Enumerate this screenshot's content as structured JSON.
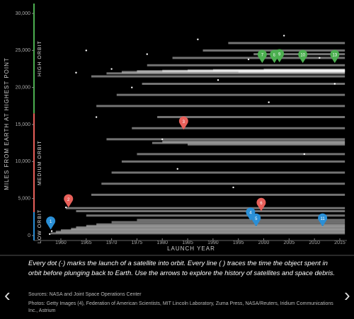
{
  "chart_data": {
    "type": "timeline-scatter",
    "xlabel": "LAUNCH YEAR",
    "ylabel": "MILES FROM EARTH AT HIGHEST POINT",
    "xlim": [
      1954.7,
      2016.4
    ],
    "ylim": [
      -670,
      31340
    ],
    "xticks": [
      1960,
      1965,
      1970,
      1975,
      1980,
      1985,
      1990,
      1995,
      2000,
      2005,
      2010,
      2015
    ],
    "yticks": [
      0,
      {
        "value": 5000,
        "label": "5,000"
      },
      {
        "value": 10000,
        "label": "10,000"
      },
      {
        "value": 15000,
        "label": "15,000"
      },
      {
        "value": 20000,
        "label": "20,000"
      },
      {
        "value": 25000,
        "label": "25,000"
      },
      {
        "value": 30000,
        "label": "30,000"
      }
    ],
    "zone_bounds": [
      3150,
      16500
    ],
    "zones": [
      {
        "label": "LOW ORBIT",
        "color": "#2a8fd6"
      },
      {
        "label": "MEDIUM ORBIT",
        "color": "#e8605a"
      },
      {
        "label": "HIGH ORBIT",
        "color": "#4caf50"
      }
    ],
    "segment_color": "#ffffff",
    "segments": {
      "start": [
        1958,
        1959,
        1960,
        1962,
        1963,
        1965,
        1967,
        1970,
        1975,
        1961,
        1963,
        1965,
        1966,
        1968,
        1970,
        1972,
        1975,
        1978,
        1980,
        1985,
        1969,
        1974,
        1979,
        1967,
        1971,
        1976,
        1966,
        1969,
        1972,
        1975,
        1980,
        1985,
        1990,
        1995,
        2000,
        1977,
        1982,
        1988,
        1993,
        1998
      ],
      "end": [
        2016,
        2016,
        2016,
        2016,
        2016,
        2016,
        2016,
        2016,
        2016,
        2016,
        2016,
        2016,
        2016,
        2016,
        2016,
        2016,
        2016,
        2016,
        2016,
        2016,
        2016,
        2016,
        2016,
        2016,
        2016,
        2016,
        2016,
        2016,
        2016,
        2016,
        2016,
        2016,
        2016,
        2016,
        2016,
        2016,
        2016,
        2016,
        2016,
        2016
      ],
      "altitude": [
        300,
        500,
        700,
        900,
        1100,
        1300,
        1500,
        1800,
        2100,
        3700,
        3300,
        2700,
        5500,
        7000,
        8500,
        10000,
        11000,
        12500,
        12700,
        12300,
        13000,
        14500,
        16000,
        17500,
        19000,
        20500,
        21500,
        21900,
        22100,
        22200,
        22250,
        22300,
        22350,
        22150,
        22400,
        23000,
        24000,
        25000,
        26000,
        24500
      ]
    },
    "dots": {
      "x": [
        1957.8,
        1958.2,
        1961,
        1963,
        1965,
        1967,
        1970,
        1974,
        1977,
        1980,
        1983,
        1987,
        1991,
        1994,
        1997,
        2001,
        2004,
        2008,
        2011,
        2014
      ],
      "y": [
        200,
        600,
        3800,
        22000,
        25000,
        16000,
        22500,
        20000,
        24500,
        13000,
        9000,
        26500,
        21000,
        6500,
        23800,
        18000,
        27000,
        11000,
        24000,
        20500
      ]
    },
    "markers": [
      {
        "label": "1",
        "x": 1958,
        "y": 800,
        "color": "#2a8fd6"
      },
      {
        "label": "2",
        "x": 1961.5,
        "y": 3800,
        "color": "#e8605a"
      },
      {
        "label": "3",
        "x": 1984.2,
        "y": 14300,
        "color": "#e8605a"
      },
      {
        "label": "4",
        "x": 1997.4,
        "y": 2000,
        "color": "#2a8fd6"
      },
      {
        "label": "5",
        "x": 1998.5,
        "y": 1200,
        "color": "#2a8fd6"
      },
      {
        "label": "6",
        "x": 1999.5,
        "y": 3300,
        "color": "#e8605a"
      },
      {
        "label": "7",
        "x": 1999.7,
        "y": 23300,
        "color": "#4caf50"
      },
      {
        "label": "8",
        "x": 2002.1,
        "y": 23300,
        "color": "#4caf50"
      },
      {
        "label": "9",
        "x": 2003.1,
        "y": 23400,
        "color": "#4caf50"
      },
      {
        "label": "10",
        "x": 2007.7,
        "y": 23300,
        "color": "#4caf50"
      },
      {
        "label": "11",
        "x": 2011.6,
        "y": 1200,
        "color": "#2a8fd6"
      },
      {
        "label": "13",
        "x": 2014,
        "y": 23300,
        "color": "#4caf50"
      }
    ]
  },
  "caption": "Every dot (·) marks the launch of a satellite into orbit. Every line (      ) traces the time the object spent in orbit before plunging back to Earth. Use the arrows to explore the history of satellites and space debris.",
  "sources": "Sources: NASA and Joint Space Operations Center",
  "photos": "Photos: Getty Images (4), Federation of American Scientists, MIT Lincoln Laboratory, Zuma Press, NASA/Reuters, Iridium Communications Inc., Astrium",
  "nav": {
    "prev": "‹",
    "next": "›"
  }
}
